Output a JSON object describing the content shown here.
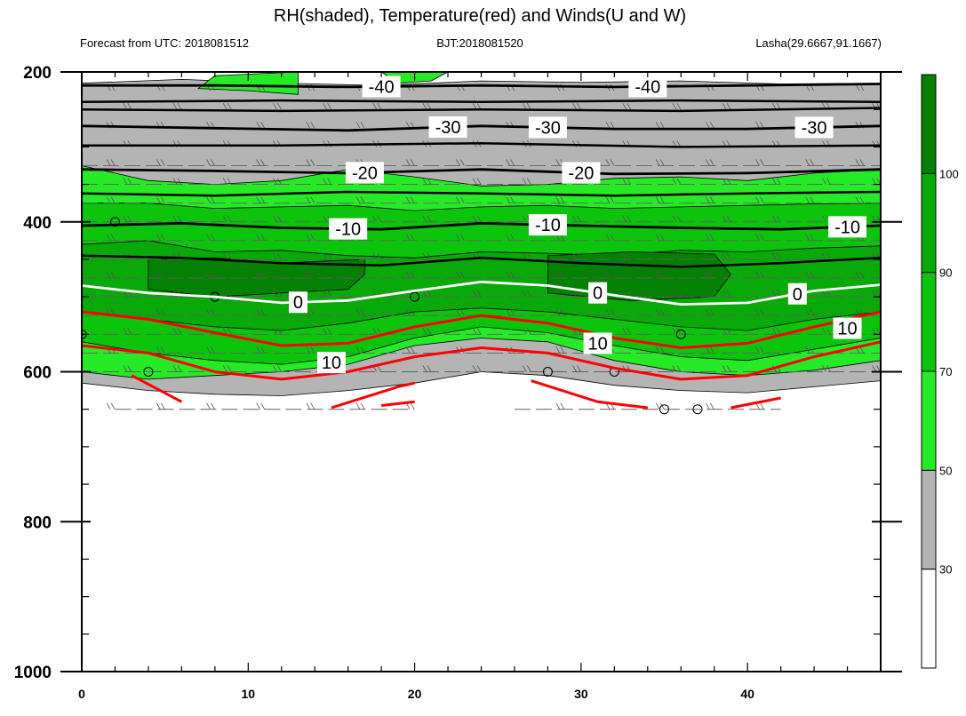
{
  "header": {
    "title": "RH(shaded), Temperature(red) and Winds(U and W)",
    "left": "Forecast from UTC: 2018081512",
    "center": "BJT:2018081520",
    "right": "Lasha(29.6667,91.1667)"
  },
  "colors": {
    "white": "#ffffff",
    "gray": "#b4b4b4",
    "light_green": "#27ea27",
    "mid_green": "#0cc40c",
    "green": "#08a908",
    "dark_green": "#048004",
    "temperature": "#ff0000",
    "zero_line": "#ffffff",
    "isotherm": "#000000"
  },
  "chart_data": {
    "type": "heatmap",
    "title": "RH(shaded), Temperature(red) and Winds(U and W)",
    "x": {
      "ticks": [
        0,
        10,
        20,
        30,
        40
      ],
      "range": [
        0,
        48
      ]
    },
    "y": {
      "ticks": [
        200,
        400,
        600,
        800,
        1000
      ],
      "range": [
        1000,
        200
      ],
      "scale": "log-pressure"
    },
    "colorbar": {
      "labels": [
        "30",
        "50",
        "70",
        "90",
        "100"
      ],
      "levels": [
        30,
        50,
        70,
        90,
        100
      ]
    },
    "rh_bands": [
      {
        "level": 30,
        "top": [
          [
            0,
            215
          ],
          [
            6,
            210
          ],
          [
            12,
            215
          ],
          [
            18,
            218
          ],
          [
            24,
            212
          ],
          [
            30,
            214
          ],
          [
            36,
            212
          ],
          [
            42,
            216
          ],
          [
            48,
            215
          ]
        ],
        "bottom": [
          [
            0,
            615
          ],
          [
            4,
            625
          ],
          [
            8,
            630
          ],
          [
            12,
            632
          ],
          [
            16,
            625
          ],
          [
            20,
            615
          ],
          [
            24,
            600
          ],
          [
            28,
            605
          ],
          [
            32,
            618
          ],
          [
            36,
            625
          ],
          [
            40,
            628
          ],
          [
            44,
            620
          ],
          [
            48,
            612
          ]
        ]
      },
      {
        "level": 50,
        "top": [
          [
            0,
            325
          ],
          [
            4,
            345
          ],
          [
            8,
            350
          ],
          [
            12,
            345
          ],
          [
            16,
            330
          ],
          [
            20,
            340
          ],
          [
            24,
            352
          ],
          [
            28,
            350
          ],
          [
            32,
            342
          ],
          [
            36,
            340
          ],
          [
            40,
            345
          ],
          [
            44,
            335
          ],
          [
            48,
            330
          ]
        ],
        "bottom": [
          [
            0,
            600
          ],
          [
            4,
            610
          ],
          [
            8,
            605
          ],
          [
            12,
            600
          ],
          [
            16,
            590
          ],
          [
            20,
            565
          ],
          [
            24,
            555
          ],
          [
            28,
            560
          ],
          [
            32,
            585
          ],
          [
            36,
            600
          ],
          [
            40,
            605
          ],
          [
            44,
            598
          ],
          [
            48,
            585
          ]
        ]
      },
      {
        "level": 70,
        "top": [
          [
            0,
            375
          ],
          [
            4,
            375
          ],
          [
            8,
            382
          ],
          [
            12,
            380
          ],
          [
            16,
            378
          ],
          [
            20,
            385
          ],
          [
            24,
            380
          ],
          [
            28,
            378
          ],
          [
            32,
            382
          ],
          [
            36,
            380
          ],
          [
            40,
            378
          ],
          [
            44,
            376
          ],
          [
            48,
            375
          ]
        ],
        "bottom": [
          [
            0,
            560
          ],
          [
            4,
            575
          ],
          [
            8,
            585
          ],
          [
            12,
            590
          ],
          [
            16,
            580
          ],
          [
            20,
            555
          ],
          [
            24,
            540
          ],
          [
            28,
            548
          ],
          [
            32,
            565
          ],
          [
            36,
            580
          ],
          [
            40,
            585
          ],
          [
            44,
            570
          ],
          [
            48,
            555
          ]
        ]
      },
      {
        "level": 90,
        "top": [
          [
            0,
            430
          ],
          [
            4,
            425
          ],
          [
            8,
            440
          ],
          [
            12,
            438
          ],
          [
            16,
            445
          ],
          [
            20,
            448
          ],
          [
            24,
            440
          ],
          [
            28,
            442
          ],
          [
            32,
            445
          ],
          [
            36,
            438
          ],
          [
            40,
            440
          ],
          [
            44,
            435
          ],
          [
            48,
            432
          ]
        ],
        "bottom": [
          [
            0,
            520
          ],
          [
            4,
            530
          ],
          [
            8,
            540
          ],
          [
            12,
            545
          ],
          [
            16,
            535
          ],
          [
            20,
            520
          ],
          [
            24,
            515
          ],
          [
            28,
            520
          ],
          [
            32,
            530
          ],
          [
            36,
            540
          ],
          [
            40,
            545
          ],
          [
            44,
            530
          ],
          [
            48,
            520
          ]
        ]
      }
    ],
    "rh_patches": [
      [
        [
          4,
          450
        ],
        [
          8,
          448
        ],
        [
          12,
          455
        ],
        [
          17,
          450
        ],
        [
          17,
          470
        ],
        [
          16,
          490
        ],
        [
          12,
          495
        ],
        [
          8,
          500
        ],
        [
          4,
          490
        ]
      ],
      [
        [
          28,
          445
        ],
        [
          33,
          440
        ],
        [
          38,
          443
        ],
        [
          39,
          470
        ],
        [
          38,
          500
        ],
        [
          33,
          505
        ],
        [
          28,
          495
        ]
      ],
      [
        [
          8,
          205
        ],
        [
          13,
          200
        ],
        [
          13,
          230
        ],
        [
          10,
          225
        ],
        [
          7,
          222
        ]
      ],
      [
        [
          18,
          200
        ],
        [
          22,
          200
        ],
        [
          21,
          212
        ],
        [
          19,
          215
        ]
      ]
    ],
    "isotherms": [
      {
        "label": "-40",
        "label_x": [
          18,
          34
        ],
        "points": [
          [
            0,
            218
          ],
          [
            8,
            218
          ],
          [
            16,
            220
          ],
          [
            24,
            218
          ],
          [
            32,
            220
          ],
          [
            40,
            218
          ],
          [
            48,
            216
          ]
        ]
      },
      {
        "label": "-30",
        "label_x": [
          22,
          28,
          44
        ],
        "points": [
          [
            0,
            272
          ],
          [
            8,
            275
          ],
          [
            16,
            278
          ],
          [
            24,
            272
          ],
          [
            32,
            276
          ],
          [
            40,
            276
          ],
          [
            48,
            272
          ]
        ]
      },
      {
        "label": "-20",
        "label_x": [
          17,
          30
        ],
        "points": [
          [
            0,
            330
          ],
          [
            8,
            332
          ],
          [
            16,
            335
          ],
          [
            24,
            330
          ],
          [
            32,
            336
          ],
          [
            40,
            335
          ],
          [
            48,
            330
          ]
        ]
      },
      {
        "label": "-10",
        "label_x": [
          16,
          28,
          46
        ],
        "points": [
          [
            0,
            405
          ],
          [
            6,
            402
          ],
          [
            12,
            408
          ],
          [
            18,
            410
          ],
          [
            24,
            402
          ],
          [
            30,
            405
          ],
          [
            36,
            408
          ],
          [
            42,
            410
          ],
          [
            48,
            405
          ]
        ]
      },
      {
        "label": "0",
        "label_x": [
          13,
          31,
          43
        ],
        "points": [
          [
            0,
            485
          ],
          [
            4,
            495
          ],
          [
            8,
            500
          ],
          [
            12,
            508
          ],
          [
            16,
            505
          ],
          [
            20,
            492
          ],
          [
            24,
            480
          ],
          [
            28,
            485
          ],
          [
            32,
            498
          ],
          [
            36,
            510
          ],
          [
            40,
            508
          ],
          [
            44,
            492
          ],
          [
            48,
            484
          ]
        ]
      }
    ],
    "isotherms_unlabeled": [
      [
        [
          0,
          240
        ],
        [
          12,
          238
        ],
        [
          24,
          240
        ],
        [
          36,
          238
        ],
        [
          48,
          240
        ]
      ],
      [
        [
          0,
          250
        ],
        [
          12,
          252
        ],
        [
          24,
          250
        ],
        [
          36,
          252
        ],
        [
          48,
          248
        ]
      ],
      [
        [
          0,
          298
        ],
        [
          12,
          298
        ],
        [
          24,
          295
        ],
        [
          36,
          300
        ],
        [
          48,
          298
        ]
      ],
      [
        [
          0,
          362
        ],
        [
          8,
          365
        ],
        [
          16,
          360
        ],
        [
          24,
          362
        ],
        [
          32,
          365
        ],
        [
          40,
          362
        ],
        [
          48,
          360
        ]
      ],
      [
        [
          0,
          445
        ],
        [
          6,
          448
        ],
        [
          12,
          455
        ],
        [
          18,
          458
        ],
        [
          24,
          448
        ],
        [
          30,
          455
        ],
        [
          36,
          460
        ],
        [
          42,
          455
        ],
        [
          48,
          448
        ]
      ]
    ],
    "temperature_lines": [
      {
        "label": "10",
        "label_x": [
          15,
          31,
          46
        ],
        "points": [
          [
            0,
            520
          ],
          [
            4,
            530
          ],
          [
            8,
            548
          ],
          [
            12,
            565
          ],
          [
            16,
            562
          ],
          [
            20,
            540
          ],
          [
            24,
            525
          ],
          [
            28,
            535
          ],
          [
            32,
            555
          ],
          [
            36,
            568
          ],
          [
            40,
            562
          ],
          [
            44,
            540
          ],
          [
            48,
            520
          ]
        ]
      },
      {
        "label": "",
        "label_x": [],
        "points": [
          [
            0,
            565
          ],
          [
            4,
            575
          ],
          [
            8,
            600
          ],
          [
            12,
            610
          ],
          [
            16,
            600
          ],
          [
            20,
            580
          ],
          [
            24,
            568
          ],
          [
            28,
            575
          ],
          [
            32,
            595
          ],
          [
            36,
            610
          ],
          [
            40,
            605
          ],
          [
            44,
            580
          ],
          [
            48,
            560
          ]
        ]
      },
      {
        "label": "",
        "label_x": [],
        "points": [
          [
            3,
            605
          ],
          [
            6,
            640
          ]
        ]
      },
      {
        "label": "",
        "label_x": [],
        "points": [
          [
            15,
            648
          ],
          [
            19,
            620
          ],
          [
            20,
            615
          ]
        ]
      },
      {
        "label": "",
        "label_x": [],
        "points": [
          [
            18,
            645
          ],
          [
            20,
            640
          ]
        ]
      },
      {
        "label": "",
        "label_x": [],
        "points": [
          [
            27,
            612
          ],
          [
            31,
            640
          ],
          [
            34,
            648
          ]
        ]
      },
      {
        "label": "",
        "label_x": [],
        "points": [
          [
            39,
            648
          ],
          [
            42,
            635
          ]
        ]
      }
    ],
    "wind_barb_levels": [
      225,
      250,
      275,
      300,
      325,
      350,
      375,
      400,
      425,
      450,
      475,
      500,
      525,
      550,
      575,
      600,
      650
    ],
    "calm_circles": [
      [
        2,
        400
      ],
      [
        8,
        500
      ],
      [
        20,
        500
      ],
      [
        0,
        550
      ],
      [
        36,
        550
      ],
      [
        4,
        600
      ],
      [
        28,
        600
      ],
      [
        32,
        600
      ],
      [
        35,
        650
      ],
      [
        37,
        650
      ]
    ]
  }
}
